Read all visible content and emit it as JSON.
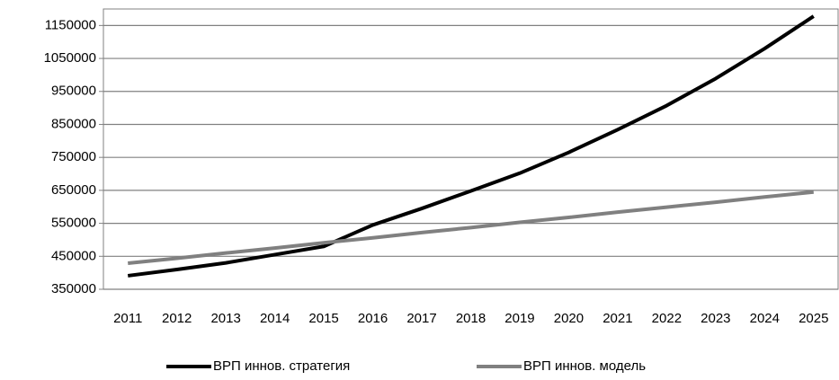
{
  "chart_data": {
    "type": "line",
    "categories": [
      "2011",
      "2012",
      "2013",
      "2014",
      "2015",
      "2016",
      "2017",
      "2018",
      "2019",
      "2020",
      "2021",
      "2022",
      "2023",
      "2024",
      "2025"
    ],
    "series": [
      {
        "name": "ВРП  иннов. стратегия",
        "color": "#000000",
        "values": [
          391000,
          410000,
          430000,
          455000,
          480000,
          545000,
          595000,
          648000,
          702000,
          765000,
          834000,
          907000,
          989000,
          1080000,
          1178000
        ]
      },
      {
        "name": "ВРП  иннов. модель",
        "color": "#808080",
        "values": [
          429000,
          444000,
          460000,
          475000,
          491000,
          506000,
          522000,
          537000,
          553000,
          568000,
          584000,
          599000,
          614000,
          630000,
          645000
        ]
      }
    ],
    "ylim": [
      350000,
      1200000
    ],
    "yticks": [
      350000,
      450000,
      550000,
      650000,
      750000,
      850000,
      950000,
      1050000,
      1150000
    ],
    "grid": true,
    "legend": "bottom"
  }
}
